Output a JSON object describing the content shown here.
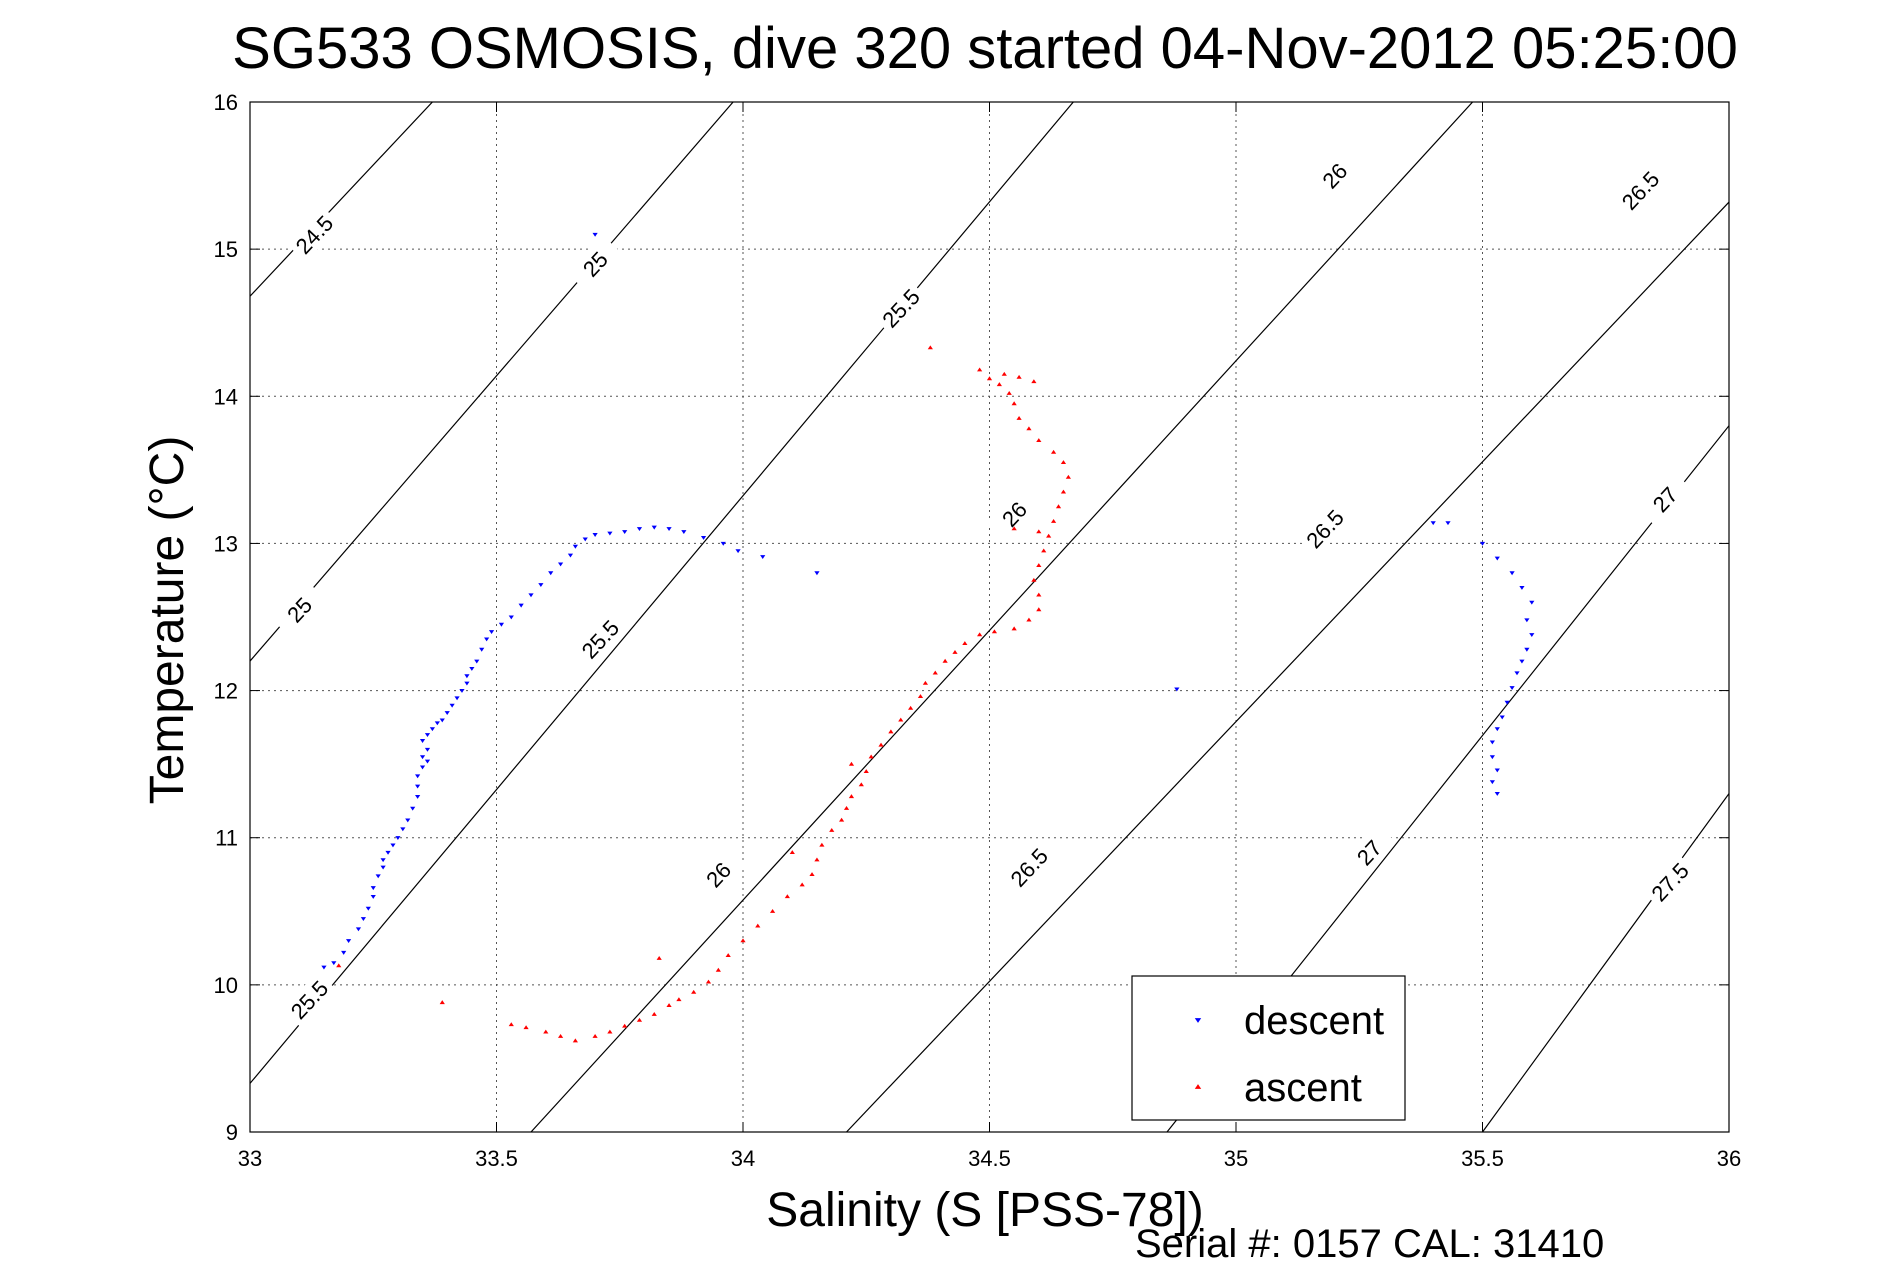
{
  "chart_data": {
    "type": "scatter",
    "title": "SG533 OSMOSIS, dive 320 started 04-Nov-2012 05:25:00",
    "xlabel": "Salinity (S [PSS-78])",
    "ylabel": "Temperature (°C)",
    "xlim": [
      33,
      36
    ],
    "ylim": [
      9,
      16
    ],
    "xticks": [
      "33",
      "33.5",
      "34",
      "34.5",
      "35",
      "35.5",
      "36"
    ],
    "yticks": [
      "9",
      "10",
      "11",
      "12",
      "13",
      "14",
      "15",
      "16"
    ],
    "grid": true,
    "legend_position": "lower-right",
    "footer": "Serial #: 0157  CAL: 31410",
    "colors": {
      "descent": "#0000ff",
      "ascent": "#ff0000",
      "contour": "#000000"
    },
    "density_contours": [
      {
        "sigma": 24.5,
        "label": "24.5",
        "points": [
          [
            33,
            14.68
          ],
          [
            33.37,
            16.0
          ]
        ]
      },
      {
        "sigma": 25.0,
        "label": "25",
        "points": [
          [
            33,
            12.2
          ],
          [
            33.98,
            16.0
          ]
        ]
      },
      {
        "sigma": 25.5,
        "label": "25.5",
        "points": [
          [
            33,
            9.33
          ],
          [
            34.67,
            16.0
          ]
        ]
      },
      {
        "sigma": 26.0,
        "label": "26",
        "points": [
          [
            33.57,
            9.0
          ],
          [
            35.48,
            16.0
          ]
        ]
      },
      {
        "sigma": 26.5,
        "label": "26.5",
        "points": [
          [
            34.21,
            9.0
          ],
          [
            36.0,
            15.32
          ]
        ]
      },
      {
        "sigma": 27.0,
        "label": "27",
        "points": [
          [
            34.86,
            9.0
          ],
          [
            36.0,
            13.8
          ]
        ]
      },
      {
        "sigma": 27.5,
        "label": "27.5",
        "points": [
          [
            35.5,
            9.0
          ],
          [
            36.0,
            11.3
          ]
        ]
      }
    ],
    "contour_labels": [
      {
        "text": "24.5",
        "x": 33.13,
        "y": 15.1
      },
      {
        "text": "25",
        "x": 33.7,
        "y": 14.9
      },
      {
        "text": "25.5",
        "x": 34.32,
        "y": 14.6
      },
      {
        "text": "26",
        "x": 35.2,
        "y": 15.5
      },
      {
        "text": "26.5",
        "x": 35.82,
        "y": 15.4
      },
      {
        "text": "25",
        "x": 33.1,
        "y": 12.55
      },
      {
        "text": "25.5",
        "x": 33.71,
        "y": 12.35
      },
      {
        "text": "26",
        "x": 34.55,
        "y": 13.2
      },
      {
        "text": "26.5",
        "x": 35.18,
        "y": 13.1
      },
      {
        "text": "27",
        "x": 35.87,
        "y": 13.3
      },
      {
        "text": "25.5",
        "x": 33.12,
        "y": 9.9
      },
      {
        "text": "26",
        "x": 33.95,
        "y": 10.75
      },
      {
        "text": "26.5",
        "x": 34.58,
        "y": 10.8
      },
      {
        "text": "27",
        "x": 35.27,
        "y": 10.9
      },
      {
        "text": "27.5",
        "x": 35.88,
        "y": 10.7
      }
    ],
    "series": [
      {
        "name": "descent",
        "marker": "triangle-down",
        "color": "#0000ff",
        "points": [
          [
            33.15,
            10.12
          ],
          [
            33.17,
            10.15
          ],
          [
            33.19,
            10.22
          ],
          [
            33.2,
            10.3
          ],
          [
            33.22,
            10.38
          ],
          [
            33.23,
            10.45
          ],
          [
            33.24,
            10.52
          ],
          [
            33.25,
            10.6
          ],
          [
            33.25,
            10.66
          ],
          [
            33.26,
            10.74
          ],
          [
            33.27,
            10.8
          ],
          [
            33.27,
            10.85
          ],
          [
            33.28,
            10.9
          ],
          [
            33.29,
            10.95
          ],
          [
            33.3,
            11.0
          ],
          [
            33.31,
            11.06
          ],
          [
            33.32,
            11.12
          ],
          [
            33.33,
            11.2
          ],
          [
            33.34,
            11.28
          ],
          [
            33.34,
            11.35
          ],
          [
            33.34,
            11.42
          ],
          [
            33.35,
            11.48
          ],
          [
            33.36,
            11.52
          ],
          [
            33.35,
            11.55
          ],
          [
            33.36,
            11.6
          ],
          [
            33.35,
            11.66
          ],
          [
            33.36,
            11.7
          ],
          [
            33.37,
            11.74
          ],
          [
            33.38,
            11.78
          ],
          [
            33.39,
            11.8
          ],
          [
            33.4,
            11.85
          ],
          [
            33.41,
            11.9
          ],
          [
            33.42,
            11.95
          ],
          [
            33.43,
            12.0
          ],
          [
            33.44,
            12.05
          ],
          [
            33.44,
            12.1
          ],
          [
            33.45,
            12.15
          ],
          [
            33.46,
            12.2
          ],
          [
            33.47,
            12.28
          ],
          [
            33.48,
            12.35
          ],
          [
            33.49,
            12.4
          ],
          [
            33.51,
            12.45
          ],
          [
            33.53,
            12.5
          ],
          [
            33.55,
            12.58
          ],
          [
            33.57,
            12.65
          ],
          [
            33.59,
            12.72
          ],
          [
            33.61,
            12.8
          ],
          [
            33.63,
            12.86
          ],
          [
            33.65,
            12.92
          ],
          [
            33.66,
            12.98
          ],
          [
            33.68,
            13.03
          ],
          [
            33.7,
            13.06
          ],
          [
            33.73,
            13.07
          ],
          [
            33.76,
            13.08
          ],
          [
            33.79,
            13.1
          ],
          [
            33.82,
            13.11
          ],
          [
            33.85,
            13.1
          ],
          [
            33.88,
            13.08
          ],
          [
            33.92,
            13.04
          ],
          [
            33.96,
            13.0
          ],
          [
            33.99,
            12.95
          ],
          [
            34.04,
            12.91
          ],
          [
            34.15,
            12.8
          ],
          [
            33.7,
            15.1
          ],
          [
            34.88,
            12.01
          ],
          [
            35.4,
            13.14
          ],
          [
            35.43,
            13.14
          ],
          [
            35.5,
            13.0
          ],
          [
            35.53,
            12.9
          ],
          [
            35.56,
            12.8
          ],
          [
            35.58,
            12.7
          ],
          [
            35.6,
            12.6
          ],
          [
            35.59,
            12.48
          ],
          [
            35.6,
            12.38
          ],
          [
            35.59,
            12.28
          ],
          [
            35.58,
            12.2
          ],
          [
            35.57,
            12.12
          ],
          [
            35.56,
            12.02
          ],
          [
            35.55,
            11.92
          ],
          [
            35.54,
            11.82
          ],
          [
            35.53,
            11.74
          ],
          [
            35.52,
            11.65
          ],
          [
            35.52,
            11.55
          ],
          [
            35.53,
            11.46
          ],
          [
            35.52,
            11.38
          ],
          [
            35.53,
            11.3
          ]
        ]
      },
      {
        "name": "ascent",
        "marker": "triangle-up",
        "color": "#ff0000",
        "points": [
          [
            33.18,
            10.13
          ],
          [
            33.39,
            9.88
          ],
          [
            33.53,
            9.73
          ],
          [
            33.56,
            9.71
          ],
          [
            33.6,
            9.68
          ],
          [
            33.63,
            9.65
          ],
          [
            33.66,
            9.62
          ],
          [
            33.7,
            9.65
          ],
          [
            33.73,
            9.68
          ],
          [
            33.76,
            9.72
          ],
          [
            33.79,
            9.76
          ],
          [
            33.82,
            9.8
          ],
          [
            33.85,
            9.86
          ],
          [
            33.87,
            9.9
          ],
          [
            33.9,
            9.95
          ],
          [
            33.93,
            10.02
          ],
          [
            33.95,
            10.1
          ],
          [
            33.97,
            10.2
          ],
          [
            34.0,
            10.3
          ],
          [
            34.03,
            10.4
          ],
          [
            34.06,
            10.5
          ],
          [
            34.09,
            10.6
          ],
          [
            34.12,
            10.68
          ],
          [
            34.14,
            10.75
          ],
          [
            34.15,
            10.85
          ],
          [
            34.16,
            10.95
          ],
          [
            34.18,
            11.05
          ],
          [
            34.2,
            11.12
          ],
          [
            34.21,
            11.2
          ],
          [
            34.22,
            11.28
          ],
          [
            34.24,
            11.36
          ],
          [
            34.25,
            11.45
          ],
          [
            34.26,
            11.55
          ],
          [
            34.28,
            11.63
          ],
          [
            34.3,
            11.72
          ],
          [
            34.32,
            11.8
          ],
          [
            34.34,
            11.88
          ],
          [
            34.36,
            11.96
          ],
          [
            34.37,
            12.05
          ],
          [
            34.39,
            12.12
          ],
          [
            34.41,
            12.2
          ],
          [
            34.43,
            12.26
          ],
          [
            34.45,
            12.32
          ],
          [
            34.48,
            12.38
          ],
          [
            34.51,
            12.4
          ],
          [
            34.55,
            12.42
          ],
          [
            34.58,
            12.48
          ],
          [
            34.6,
            12.55
          ],
          [
            34.6,
            12.65
          ],
          [
            34.59,
            12.75
          ],
          [
            34.6,
            12.85
          ],
          [
            34.61,
            12.95
          ],
          [
            34.62,
            13.05
          ],
          [
            34.63,
            13.15
          ],
          [
            34.64,
            13.25
          ],
          [
            34.65,
            13.35
          ],
          [
            34.66,
            13.45
          ],
          [
            34.65,
            13.55
          ],
          [
            34.63,
            13.62
          ],
          [
            34.6,
            13.7
          ],
          [
            34.58,
            13.78
          ],
          [
            34.56,
            13.85
          ],
          [
            34.55,
            13.95
          ],
          [
            34.54,
            14.02
          ],
          [
            34.52,
            14.08
          ],
          [
            34.5,
            14.12
          ],
          [
            34.53,
            14.15
          ],
          [
            34.56,
            14.13
          ],
          [
            34.59,
            14.1
          ],
          [
            34.38,
            14.33
          ],
          [
            34.48,
            14.18
          ],
          [
            34.22,
            11.5
          ],
          [
            34.1,
            10.9
          ],
          [
            33.83,
            10.18
          ],
          [
            34.55,
            13.1
          ],
          [
            34.6,
            13.08
          ]
        ]
      }
    ]
  }
}
